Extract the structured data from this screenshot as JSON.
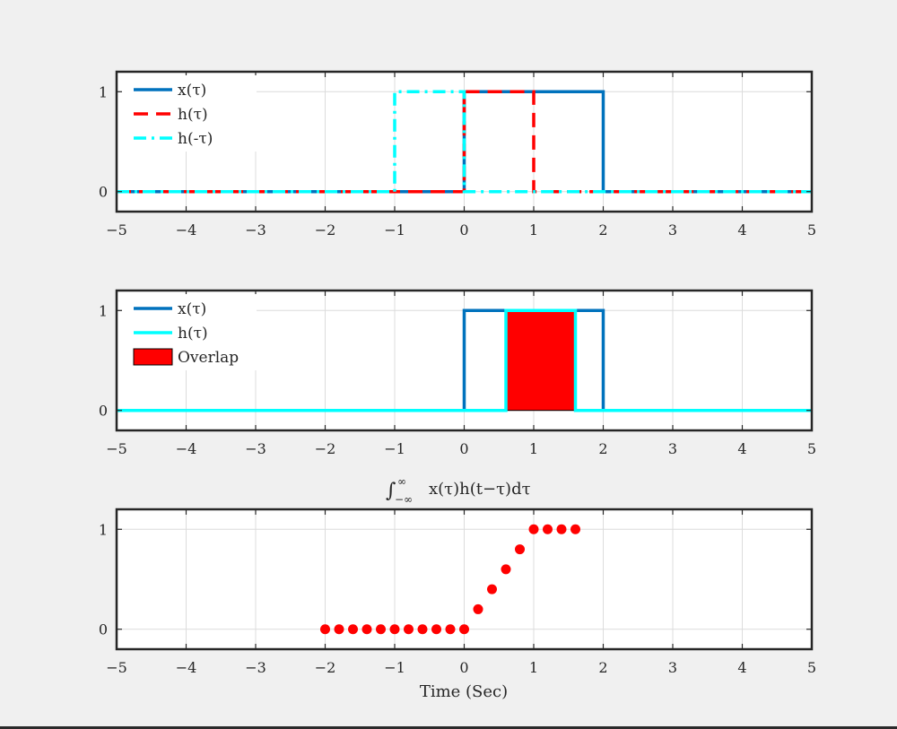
{
  "figure": {
    "xlabel": "Time (Sec)",
    "title_parts": {
      "integral": "∫",
      "upper": "∞",
      "lower": "−∞",
      "body": "x(τ)h(t−τ)dτ"
    }
  },
  "colors": {
    "blue": "#0072bd",
    "red": "#ff0000",
    "cyan": "#00ffff",
    "axes_bg": "#ffffff",
    "figure_bg": "#f0f0f0",
    "grid": "#dcdcdc"
  },
  "chart_data": [
    {
      "type": "line",
      "title": "",
      "xlabel": "",
      "ylabel": "",
      "xlim": [
        -5,
        5
      ],
      "ylim": [
        -0.2,
        1.2
      ],
      "xticks": [
        -5,
        -4,
        -3,
        -2,
        -1,
        0,
        1,
        2,
        3,
        4,
        5
      ],
      "yticks": [
        0,
        1
      ],
      "grid": true,
      "legend_placement": "top-left",
      "series": [
        {
          "name": "x(τ)",
          "style": "solid",
          "color": "#0072bd",
          "x": [
            -5,
            0,
            0,
            2,
            2,
            5
          ],
          "y": [
            0,
            0,
            1,
            1,
            0,
            0
          ]
        },
        {
          "name": "h(τ)",
          "style": "dashed",
          "color": "#ff0000",
          "x": [
            -5,
            0,
            0,
            1,
            1,
            5
          ],
          "y": [
            0,
            0,
            1,
            1,
            0,
            0
          ]
        },
        {
          "name": "h(-τ)",
          "style": "dashdot",
          "color": "#00ffff",
          "x": [
            -5,
            -1,
            -1,
            0,
            0,
            5
          ],
          "y": [
            0,
            0,
            1,
            1,
            0,
            0
          ]
        }
      ]
    },
    {
      "type": "line",
      "title": "",
      "xlabel": "",
      "ylabel": "",
      "xlim": [
        -5,
        5
      ],
      "ylim": [
        -0.2,
        1.2
      ],
      "xticks": [
        -5,
        -4,
        -3,
        -2,
        -1,
        0,
        1,
        2,
        3,
        4,
        5
      ],
      "yticks": [
        0,
        1
      ],
      "grid": true,
      "legend_placement": "top-left",
      "series": [
        {
          "name": "x(τ)",
          "style": "solid",
          "color": "#0072bd",
          "x": [
            -5,
            0,
            0,
            2,
            2,
            5
          ],
          "y": [
            0,
            0,
            1,
            1,
            0,
            0
          ]
        },
        {
          "name": "h(τ)",
          "style": "solid",
          "color": "#00ffff",
          "x": [
            -5,
            0.6,
            0.6,
            1.6,
            1.6,
            5
          ],
          "y": [
            0,
            0,
            1,
            1,
            0,
            0
          ]
        }
      ],
      "overlap": {
        "name": "Overlap",
        "color": "#ff0000",
        "x_start": 0.6,
        "x_end": 1.6,
        "height": 1
      }
    },
    {
      "type": "scatter",
      "title": "∫−∞∞ x(τ)h(t−τ)dτ",
      "xlabel": "Time (Sec)",
      "ylabel": "",
      "xlim": [
        -5,
        5
      ],
      "ylim": [
        -0.2,
        1.2
      ],
      "xticks": [
        -5,
        -4,
        -3,
        -2,
        -1,
        0,
        1,
        2,
        3,
        4,
        5
      ],
      "yticks": [
        0,
        1
      ],
      "grid": true,
      "series": [
        {
          "color": "#ff0000",
          "x": [
            -2,
            -1.8,
            -1.6,
            -1.4,
            -1.2,
            -1,
            -0.8,
            -0.6,
            -0.4,
            -0.2,
            0,
            0.2,
            0.4,
            0.6,
            0.8,
            1,
            1.2,
            1.4,
            1.6
          ],
          "y": [
            0,
            0,
            0,
            0,
            0,
            0,
            0,
            0,
            0,
            0,
            0,
            0.2,
            0.4,
            0.6,
            0.8,
            1,
            1,
            1,
            1
          ]
        }
      ]
    }
  ]
}
